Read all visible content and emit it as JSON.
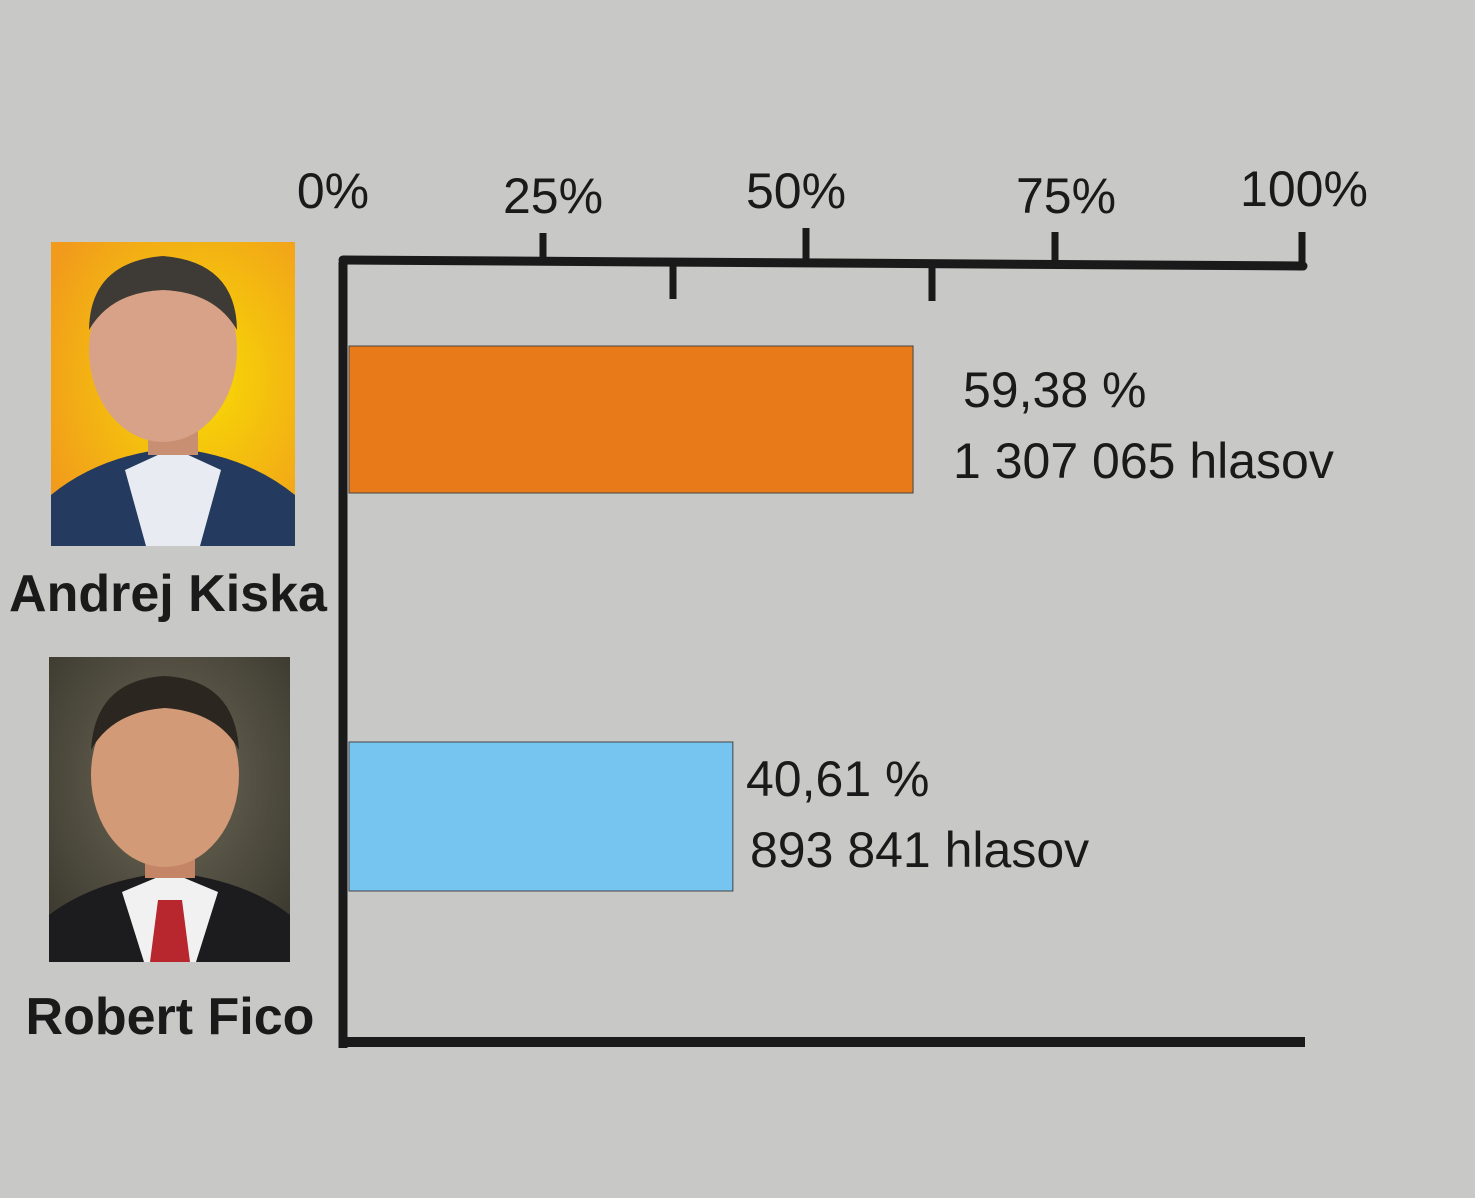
{
  "chart_data": {
    "type": "bar",
    "orientation": "horizontal",
    "xlim": [
      0,
      100
    ],
    "grid": false,
    "tick_labels": [
      "0%",
      "25%",
      "50%",
      "75%",
      "100%"
    ],
    "categories": [
      "Andrej Kiska",
      "Robert Fico"
    ],
    "values": [
      59.38,
      40.61
    ],
    "value_labels": [
      "59,38 %",
      "40,61 %"
    ],
    "vote_labels": [
      "1 307 065 hlasov",
      "893 841 hlasov"
    ],
    "colors": [
      "#e87a1a",
      "#76c4f0"
    ]
  }
}
